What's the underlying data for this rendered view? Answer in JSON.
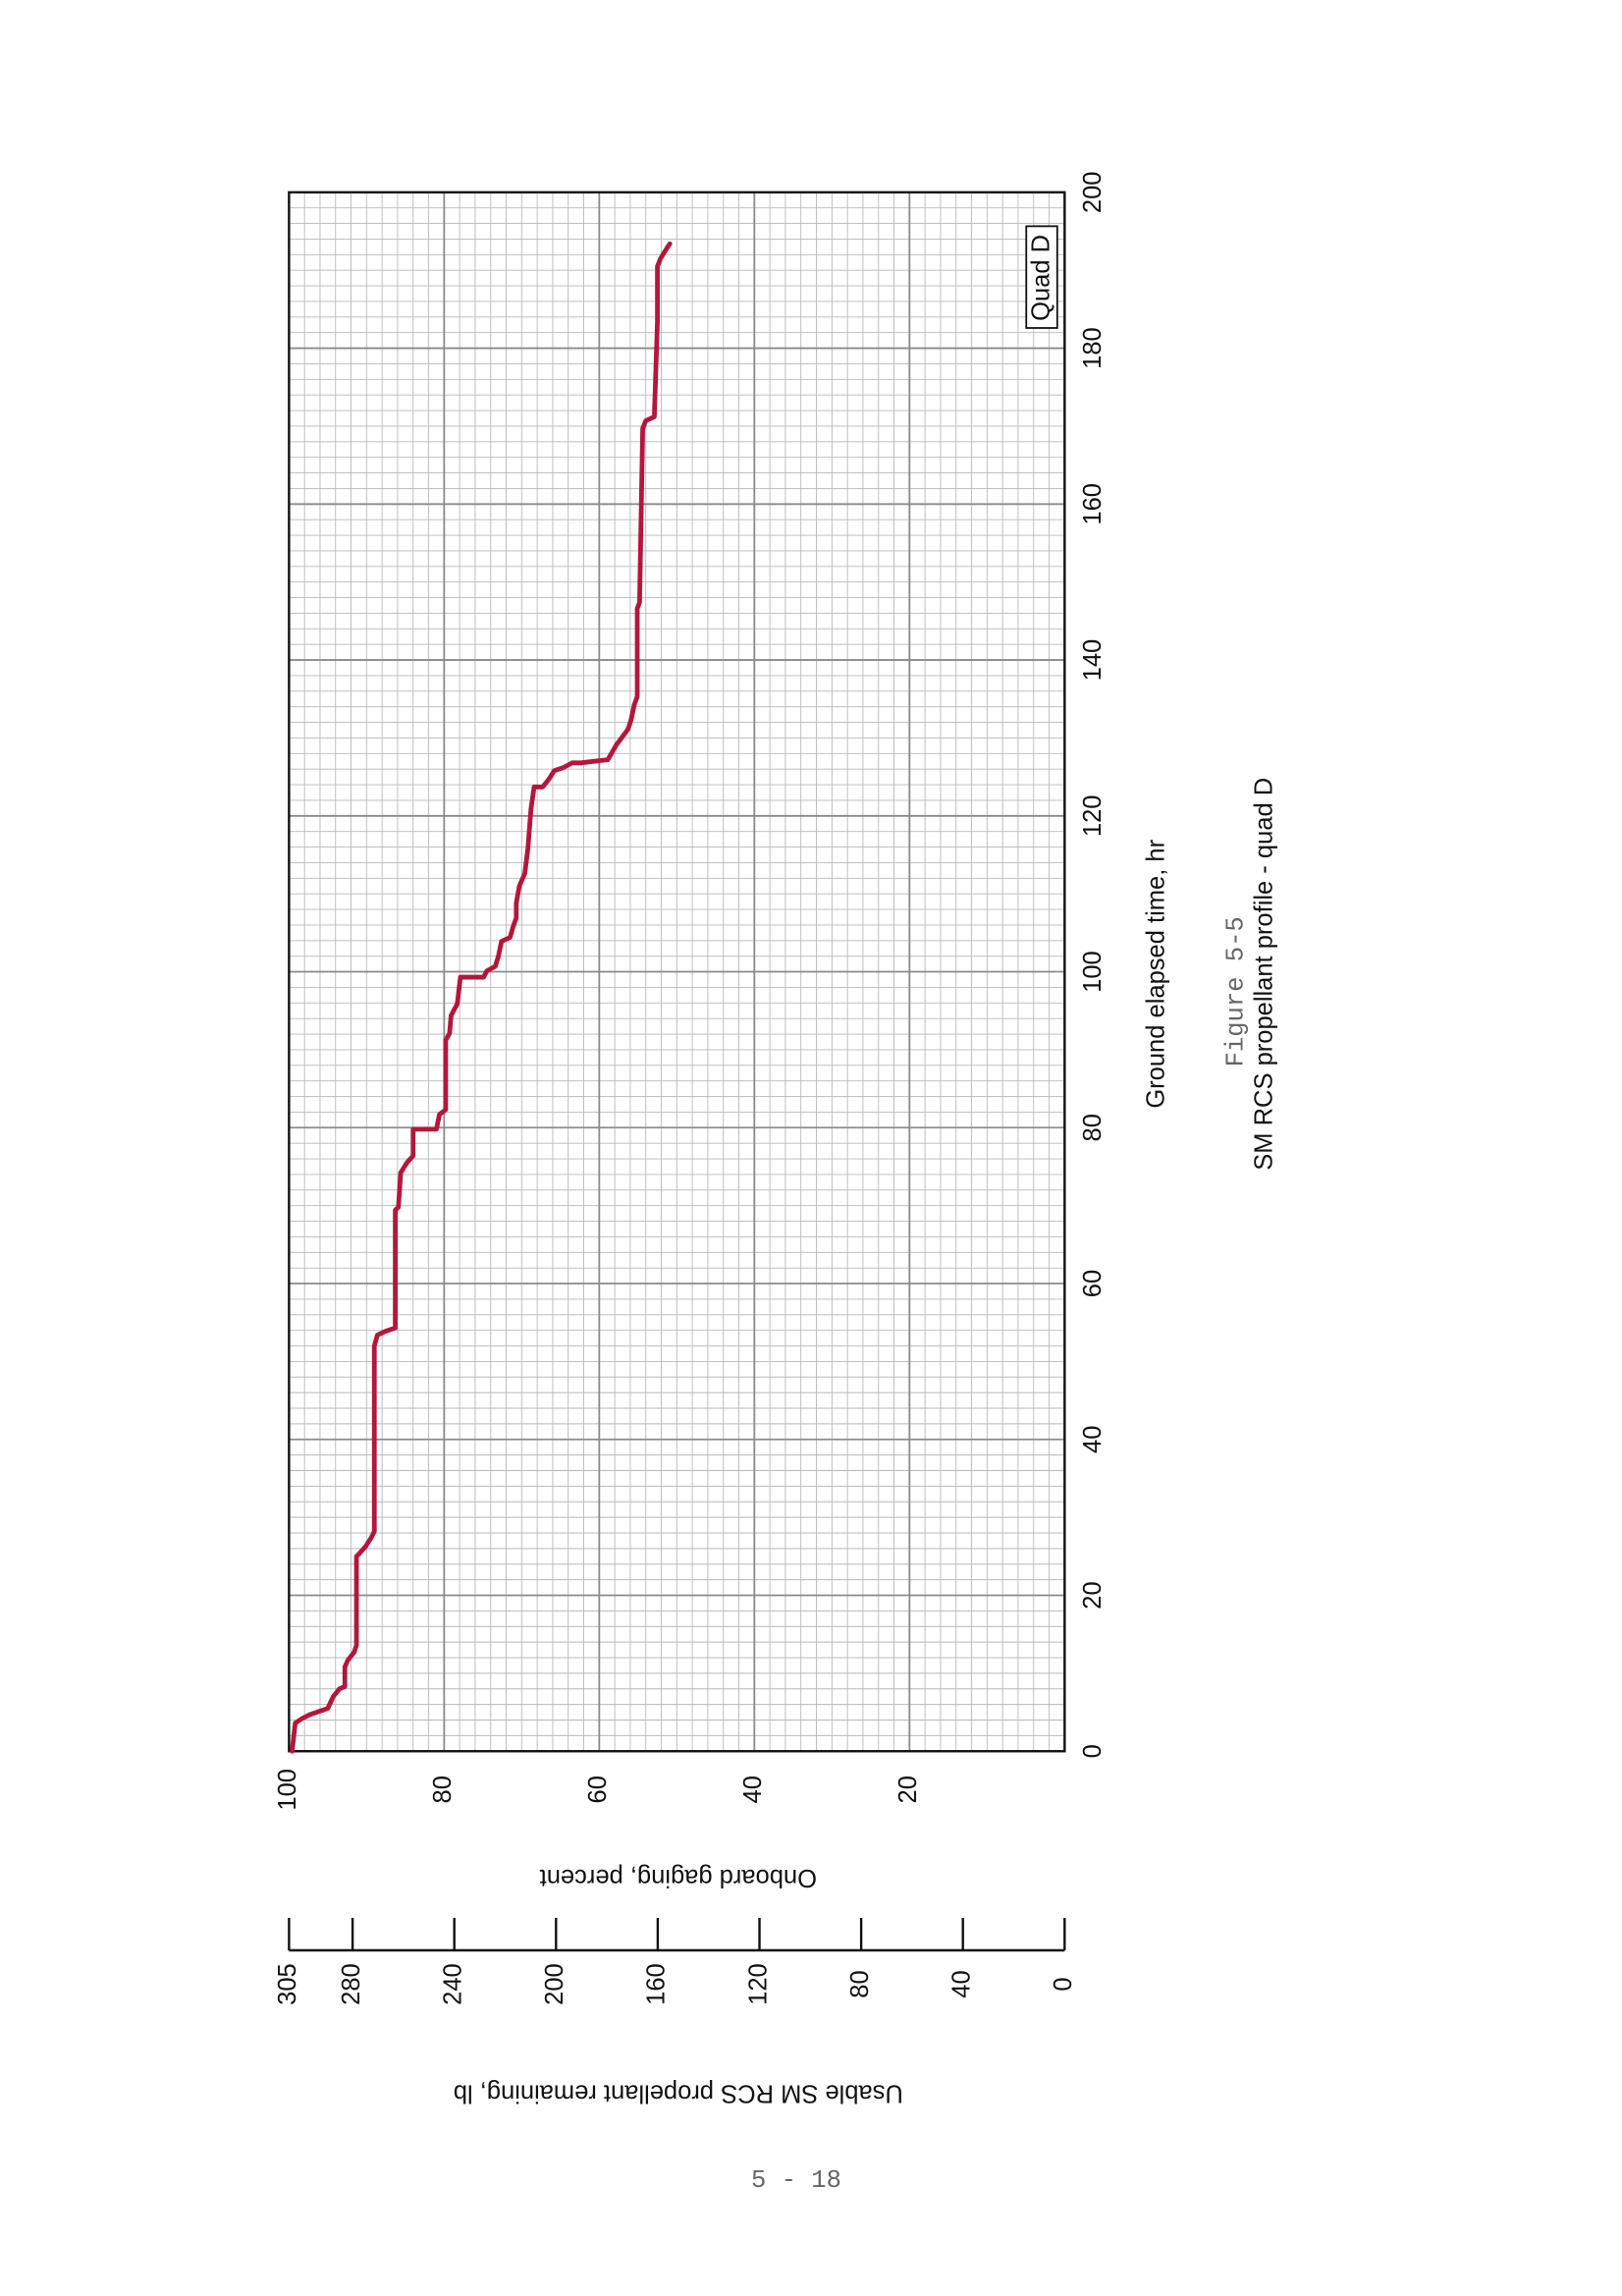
{
  "chart_data": {
    "type": "line",
    "title": "SM RCS propellant profile - quad D",
    "figure_label": "Figure 5-5",
    "annotation": "Quad D",
    "x_label": "Ground elapsed time, hr",
    "y_label": "Onboard gaging, percent",
    "y2_label": "Usable SM RCS propellant remaining, lb",
    "color": "#b3173c",
    "x": [
      0,
      3.6,
      4.2,
      4.7,
      5.5,
      7,
      8,
      8.3,
      10.8,
      11.7,
      12.7,
      13.6,
      25,
      25.4,
      26.3,
      27.4,
      28.2,
      52,
      53.4,
      53.9,
      54.3,
      69.4,
      69.8,
      74.2,
      75.5,
      76.4,
      79.8,
      79.8,
      81.7,
      82.3,
      91.2,
      92.1,
      94.4,
      95.9,
      99.3,
      99.3,
      100.1,
      100.7,
      102,
      103.9,
      104.4,
      105.8,
      106.9,
      108.8,
      111,
      112.6,
      115.8,
      120.9,
      123.7,
      123.7,
      124.7,
      125.8,
      126.2,
      126.8,
      126.8,
      127.2,
      129.1,
      131.1,
      132.3,
      134.2,
      135.3,
      146.6,
      147.4,
      169.7,
      170.7,
      171.2,
      183.4,
      190.5,
      191.5,
      192.8,
      193.4
    ],
    "values": [
      99.6,
      99.2,
      98.3,
      97.3,
      95,
      94.3,
      93.5,
      92.8,
      92.8,
      92.4,
      91.6,
      91.3,
      91.3,
      90.9,
      90.1,
      89.4,
      89,
      89,
      88.6,
      87.5,
      86.3,
      86.3,
      85.9,
      85.6,
      84.8,
      84,
      84,
      81,
      80.6,
      79.8,
      79.8,
      79.3,
      79.1,
      78.3,
      77.9,
      74.9,
      74.5,
      73.4,
      73,
      72.6,
      71.5,
      71.1,
      70.7,
      70.7,
      70.3,
      69.6,
      69.2,
      68.8,
      68.4,
      67.3,
      66.5,
      65.8,
      64.6,
      63.5,
      62.4,
      58.9,
      57.8,
      56.3,
      55.9,
      55.5,
      55.1,
      55.1,
      54.8,
      54.4,
      54,
      52.9,
      52.5,
      52.5,
      52.1,
      51.3,
      50.9
    ],
    "xlim": [
      0,
      200
    ],
    "xticks": [
      0,
      20,
      40,
      60,
      80,
      100,
      120,
      140,
      160,
      180,
      200
    ],
    "ylim": [
      0,
      100
    ],
    "yticks": [
      20,
      40,
      60,
      80,
      100
    ],
    "y2lim": [
      0,
      305
    ],
    "y2ticks": [
      0,
      40,
      80,
      120,
      160,
      200,
      240,
      280,
      305
    ],
    "grid": true
  },
  "page": {
    "number": "5 - 18"
  }
}
